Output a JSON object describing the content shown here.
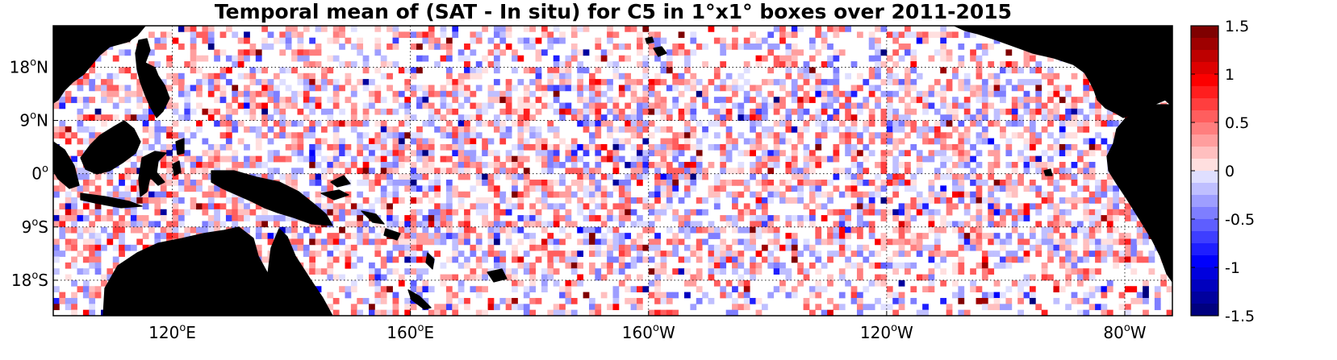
{
  "title": "Temporal mean of (SAT - In situ) for C5 in 1°x1° boxes over 2011-2015",
  "map": {
    "lon_range": [
      100,
      288
    ],
    "lat_range": [
      -24,
      25
    ],
    "lon_ticks": [
      {
        "value": 120,
        "num": "120",
        "deg": "o",
        "hemi": "E"
      },
      {
        "value": 160,
        "num": "160",
        "deg": "o",
        "hemi": "E"
      },
      {
        "value": 200,
        "num": "160",
        "deg": "o",
        "hemi": "W"
      },
      {
        "value": 240,
        "num": "120",
        "deg": "o",
        "hemi": "W"
      },
      {
        "value": 280,
        "num": "80",
        "deg": "o",
        "hemi": "W"
      }
    ],
    "lat_ticks": [
      {
        "value": 18,
        "num": "18",
        "deg": "o",
        "hemi": "N"
      },
      {
        "value": 9,
        "num": "9",
        "deg": "o",
        "hemi": "N"
      },
      {
        "value": 0,
        "num": "0",
        "deg": "o",
        "hemi": ""
      },
      {
        "value": -9,
        "num": "9",
        "deg": "o",
        "hemi": "S"
      },
      {
        "value": -18,
        "num": "18",
        "deg": "o",
        "hemi": "S"
      }
    ],
    "grid": true,
    "land_color": "#808080",
    "ocean_color": "#ffffff"
  },
  "colorbar": {
    "range": [
      -1.5,
      1.5
    ],
    "ticks": [
      "1.5",
      "1",
      "0.5",
      "0",
      "-0.5",
      "-1",
      "-1.5"
    ],
    "tick_values": [
      1.5,
      1,
      0.5,
      0,
      -0.5,
      -1,
      -1.5
    ],
    "levels": 24,
    "colors": {
      "max": "#7f0000",
      "positive": "#ff0000",
      "zero": "#ffffff",
      "negative": "#0000ff",
      "min": "#00007f"
    }
  }
}
